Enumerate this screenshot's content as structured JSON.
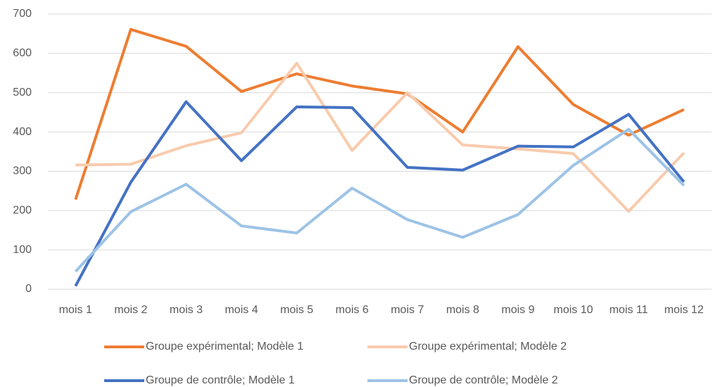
{
  "chart_data": {
    "type": "line",
    "categories": [
      "mois 1",
      "mois 2",
      "mois 3",
      "mois 4",
      "mois 5",
      "mois 6",
      "mois 7",
      "mois 8",
      "mois 9",
      "mois 10",
      "mois 11",
      "mois 12"
    ],
    "series": [
      {
        "name": "Groupe expérimental; Modèle 1",
        "color": "#ed7d31",
        "values": [
          228,
          661,
          618,
          503,
          548,
          517,
          497,
          400,
          617,
          470,
          392,
          457
        ]
      },
      {
        "name": "Groupe expérimental; Modèle 2",
        "color": "#f8cbad",
        "values": [
          316,
          318,
          365,
          398,
          575,
          353,
          500,
          367,
          357,
          345,
          198,
          347
        ]
      },
      {
        "name": "Groupe de contrôle; Modèle 1",
        "color": "#4472c4",
        "values": [
          8,
          272,
          477,
          327,
          464,
          462,
          310,
          303,
          364,
          362,
          445,
          273
        ]
      },
      {
        "name": "Groupe de contrôle; Modèle 2",
        "color": "#9dc3e6",
        "values": [
          45,
          197,
          267,
          161,
          143,
          257,
          177,
          132,
          190,
          315,
          407,
          264
        ]
      }
    ],
    "ylim": [
      0,
      700
    ],
    "yticks": [
      0,
      100,
      200,
      300,
      400,
      500,
      600,
      700
    ],
    "grid": true,
    "legend": "bottom"
  }
}
